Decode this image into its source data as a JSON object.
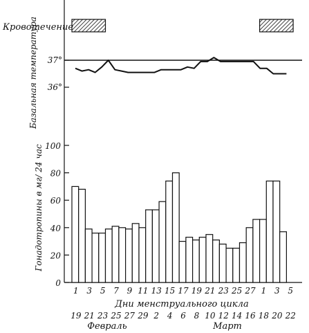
{
  "chart_data": [
    {
      "type": "timeline",
      "ylabel": "Кровотечение",
      "periods": [
        {
          "start": 1,
          "end": 5
        },
        {
          "start": 1,
          "end": 5
        }
      ],
      "period_cycles": [
        1,
        2
      ]
    },
    {
      "type": "line",
      "ylabel": "Базальная температура",
      "y_ticks": [
        "37°",
        "36°"
      ],
      "y_tick_values": [
        37,
        36
      ],
      "ylim": [
        35.8,
        37.3
      ],
      "reference_line": 37,
      "values": [
        36.7,
        36.6,
        36.65,
        36.55,
        36.75,
        37.0,
        36.65,
        36.6,
        36.55,
        36.55,
        36.55,
        36.55,
        36.55,
        36.65,
        36.65,
        36.65,
        36.65,
        36.75,
        36.7,
        36.95,
        36.95,
        37.1,
        36.95,
        36.95,
        36.95,
        36.95,
        36.95,
        36.95,
        36.7,
        36.7,
        36.5,
        36.5,
        36.5
      ]
    },
    {
      "type": "bar",
      "ylabel": "Гонадотропины в мг/ 24 час",
      "y_ticks": [
        "100",
        "80",
        "60",
        "40",
        "20",
        "0"
      ],
      "y_tick_values": [
        100,
        80,
        60,
        40,
        20,
        0
      ],
      "ylim": [
        0,
        100
      ],
      "xlabel": "Дни менструального цикла",
      "cycle_days": [
        "1",
        "3",
        "5",
        "7",
        "9",
        "11",
        "13",
        "15",
        "17",
        "19",
        "21",
        "23",
        "25",
        "27",
        "1",
        "3",
        "5"
      ],
      "calendar_dates": [
        "19",
        "21",
        "23",
        "25",
        "27",
        "29",
        "2",
        "4",
        "6",
        "8",
        "10",
        "12",
        "14",
        "16",
        "18",
        "20",
        "22"
      ],
      "months": [
        "Февраль",
        "Март"
      ],
      "values": [
        70,
        68,
        39,
        36,
        36,
        39,
        41,
        40,
        39,
        43,
        40,
        53,
        53,
        59,
        74,
        80,
        30,
        33,
        31,
        33,
        35,
        31,
        28,
        25,
        25,
        29,
        40,
        46,
        46,
        74,
        74,
        37
      ]
    }
  ]
}
